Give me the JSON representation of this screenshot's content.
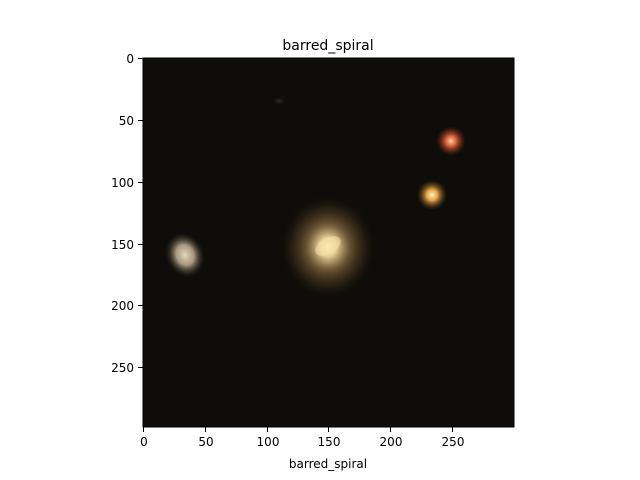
{
  "figure": {
    "title": "barred_spiral",
    "xlabel": "barred_spiral",
    "x_ticks": [
      "0",
      "50",
      "100",
      "150",
      "200",
      "250"
    ],
    "y_ticks": [
      "0",
      "50",
      "100",
      "150",
      "200",
      "250"
    ]
  },
  "image": {
    "description_colors": {
      "background": "#0d0c08",
      "galaxy_core": "#f1d899",
      "galaxy_halo": "#6b5232",
      "red_star": "#e0633a",
      "orange_star": "#f2b04e",
      "left_blob": "#cdbb9e"
    }
  }
}
